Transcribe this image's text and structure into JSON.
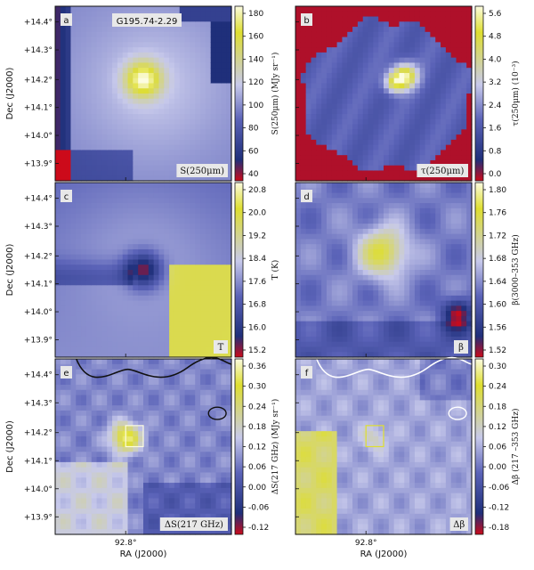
{
  "figure": {
    "xlabel": "RA (J2000)",
    "ylabel": "Dec (J2000)",
    "x_tick": "92.8°",
    "y_ticks": [
      "+14.4°",
      "+14.3°",
      "+14.2°",
      "+14.1°",
      "+14.0°",
      "+13.9°"
    ]
  },
  "colors": {
    "low": "#cc0a1a",
    "mid": "#5b63b8",
    "pale": "#c7c9eb",
    "high": "#dede30",
    "peak": "#fcfce0"
  },
  "chart_data": [
    {
      "type": "heatmap",
      "panel": "a",
      "title": "G195.74-2.29",
      "tag": "S(250μm)",
      "colorbar_label": "S(250μm) (MJy sr⁻¹)",
      "colorbar_ticks": [
        "180",
        "160",
        "140",
        "120",
        "100",
        "80",
        "60",
        "40"
      ],
      "vrange": [
        35,
        185
      ]
    },
    {
      "type": "heatmap",
      "panel": "b",
      "tag": "τ(250μm)",
      "colorbar_label": "τ(250μm) (10⁻³)",
      "colorbar_ticks": [
        "5.6",
        "4.8",
        "4.0",
        "3.2",
        "2.4",
        "1.6",
        "0.8",
        "0.0"
      ],
      "vrange": [
        -0.4,
        5.9
      ]
    },
    {
      "type": "heatmap",
      "panel": "c",
      "tag": "T",
      "colorbar_label": "T (K)",
      "colorbar_ticks": [
        "20.8",
        "20.0",
        "19.2",
        "18.4",
        "17.6",
        "16.8",
        "16.0",
        "15.2"
      ],
      "vrange": [
        14.8,
        20.9
      ]
    },
    {
      "type": "heatmap",
      "panel": "d",
      "tag": "β",
      "colorbar_label": "β(3000–353 GHz)",
      "colorbar_ticks": [
        "1.80",
        "1.76",
        "1.72",
        "1.68",
        "1.64",
        "1.60",
        "1.56",
        "1.52"
      ],
      "vrange": [
        1.5,
        1.83
      ]
    },
    {
      "type": "heatmap",
      "panel": "e",
      "tag": "ΔS(217 GHz)",
      "colorbar_label": "ΔS(217 GHz) (MJy sr⁻¹)",
      "colorbar_ticks": [
        "0.36",
        "0.30",
        "0.24",
        "0.18",
        "0.12",
        "0.06",
        "0.00",
        "-0.06",
        "-0.12"
      ],
      "vrange": [
        -0.13,
        0.4
      ]
    },
    {
      "type": "heatmap",
      "panel": "f",
      "tag": "Δβ",
      "colorbar_label": "Δβ (217 –353 GHz)",
      "colorbar_ticks": [
        "0.30",
        "0.24",
        "0.18",
        "0.12",
        "0.06",
        "0.00",
        "-0.06",
        "-0.12",
        "-0.18"
      ],
      "vrange": [
        -0.19,
        0.31
      ]
    }
  ]
}
